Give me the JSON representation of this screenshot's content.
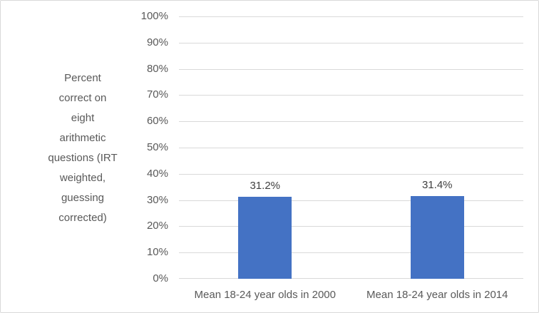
{
  "chart_data": {
    "type": "bar",
    "title": "",
    "xlabel": "",
    "ylabel": "Percent correct on eight arithmetic questions (IRT weighted, guessing corrected)",
    "ylabel_lines": [
      "Percent",
      "correct on",
      "eight",
      "arithmetic",
      "questions (IRT",
      "weighted,",
      "guessing",
      "corrected)"
    ],
    "categories": [
      "Mean 18-24 year olds in 2000",
      "Mean 18-24 year olds in 2014"
    ],
    "values": [
      31.2,
      31.4
    ],
    "data_labels": [
      "31.2%",
      "31.4%"
    ],
    "ylim": [
      0,
      100
    ],
    "ytick_labels": [
      "0%",
      "10%",
      "20%",
      "30%",
      "40%",
      "50%",
      "60%",
      "70%",
      "80%",
      "90%",
      "100%"
    ],
    "grid": true,
    "legend_position": "none",
    "colors": {
      "bar_fill": "#4472c4",
      "gridline": "#d9d9d9",
      "axis_text": "#595959",
      "data_label_text": "#404040",
      "chart_border": "#d9d9d9",
      "background": "#ffffff"
    }
  }
}
